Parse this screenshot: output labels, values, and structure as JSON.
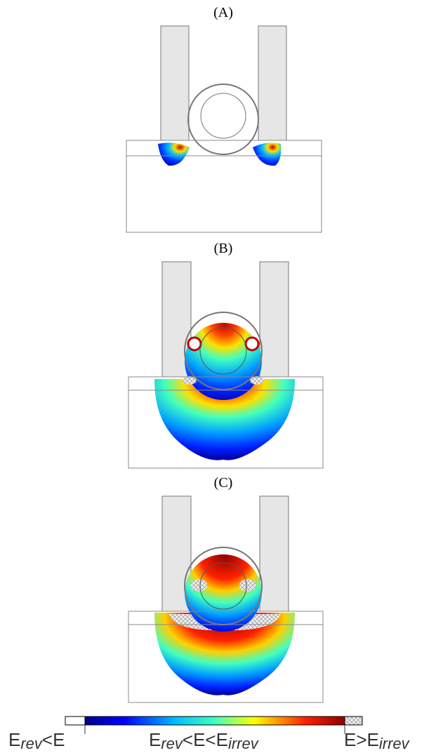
{
  "panels": [
    {
      "label": "(A)"
    },
    {
      "label": "(B)"
    },
    {
      "label": "(C)"
    }
  ],
  "legend": {
    "items": [
      [
        {
          "text": "E"
        },
        {
          "text": "rev",
          "sub": true
        },
        {
          "text": "<E"
        }
      ],
      [
        {
          "text": "E"
        },
        {
          "text": "rev",
          "sub": true
        },
        {
          "text": "<E<E"
        },
        {
          "text": "irrev",
          "sub": true
        }
      ],
      [
        {
          "text": "E>E"
        },
        {
          "text": "irrev",
          "sub": true
        }
      ]
    ]
  }
}
